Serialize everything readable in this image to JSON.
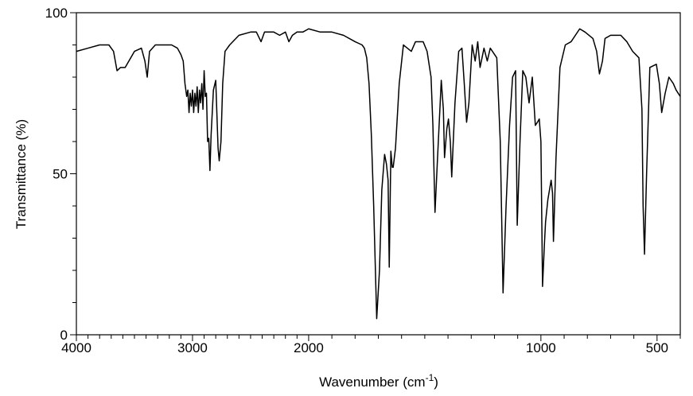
{
  "chart_data": {
    "type": "line",
    "xlabel": {
      "text": "Wavenumber (cm",
      "sup": "-1",
      "end": ")"
    },
    "ylabel": "Transmittance (%)",
    "xlim": [
      4000,
      400
    ],
    "x_scale_break": 2000,
    "x_scale_ratio_below_break": 2,
    "ylim": [
      0,
      100
    ],
    "xticks": [
      4000,
      3000,
      2000,
      1000,
      500
    ],
    "xminorticks": [
      3900,
      3800,
      3700,
      3600,
      3500,
      3400,
      3300,
      3200,
      3100,
      2900,
      2800,
      2700,
      2600,
      2500,
      2400,
      2300,
      2200,
      2100,
      1900,
      1800,
      1700,
      1600,
      1500,
      1400,
      1300,
      1200,
      1100,
      900,
      800,
      700,
      600,
      400
    ],
    "yticks": [
      0,
      50,
      100
    ],
    "yminorticks": [
      10,
      20,
      30,
      40,
      60,
      70,
      80,
      90
    ],
    "series": [
      {
        "color": "#000000",
        "x": [
          4000,
          3900,
          3800,
          3720,
          3680,
          3650,
          3620,
          3580,
          3500,
          3440,
          3410,
          3390,
          3370,
          3320,
          3250,
          3180,
          3130,
          3100,
          3080,
          3065,
          3050,
          3040,
          3030,
          3020,
          3010,
          3000,
          2990,
          2980,
          2970,
          2960,
          2950,
          2940,
          2930,
          2920,
          2910,
          2900,
          2890,
          2880,
          2870,
          2860,
          2850,
          2840,
          2820,
          2800,
          2780,
          2770,
          2755,
          2740,
          2720,
          2700,
          2680,
          2600,
          2500,
          2450,
          2410,
          2380,
          2300,
          2250,
          2200,
          2170,
          2140,
          2100,
          2050,
          2000,
          1950,
          1900,
          1850,
          1800,
          1770,
          1760,
          1750,
          1740,
          1730,
          1720,
          1707,
          1695,
          1685,
          1673,
          1665,
          1658,
          1653,
          1646,
          1640,
          1636,
          1626,
          1610,
          1592,
          1575,
          1558,
          1540,
          1524,
          1507,
          1490,
          1473,
          1465,
          1456,
          1445,
          1429,
          1420,
          1415,
          1405,
          1398,
          1390,
          1384,
          1370,
          1354,
          1340,
          1330,
          1320,
          1310,
          1296,
          1283,
          1272,
          1262,
          1245,
          1231,
          1218,
          1190,
          1175,
          1163,
          1150,
          1135,
          1122,
          1109,
          1102,
          1090,
          1078,
          1065,
          1051,
          1044,
          1037,
          1024,
          1015,
          1007,
          1000,
          993,
          985,
          980,
          970,
          956,
          950,
          946,
          935,
          918,
          895,
          870,
          833,
          810,
          776,
          760,
          748,
          735,
          724,
          700,
          656,
          630,
          605,
          578,
          565,
          560,
          554,
          545,
          531,
          503,
          490,
          480,
          465,
          449,
          430,
          418,
          400
        ],
        "values": [
          88,
          89,
          90,
          90,
          88,
          82,
          83,
          83,
          88,
          89,
          85,
          80,
          88,
          90,
          90,
          90,
          89,
          87,
          85,
          78,
          74,
          76,
          69,
          75,
          71,
          76,
          69,
          75,
          71,
          77,
          69,
          76,
          72,
          78,
          70,
          82,
          74,
          75,
          60,
          61,
          51,
          62,
          76,
          79,
          58,
          54,
          60,
          78,
          88,
          89,
          90,
          93,
          94,
          94,
          91,
          94,
          94,
          93,
          94,
          91,
          93,
          94,
          94,
          95,
          94,
          94,
          93,
          91,
          90,
          89,
          86,
          78,
          62,
          40,
          5,
          20,
          45,
          56,
          53,
          48,
          21,
          57,
          52,
          52,
          58,
          78,
          90,
          89,
          88,
          91,
          91,
          91,
          88,
          80,
          65,
          38,
          55,
          79,
          70,
          55,
          64,
          67,
          60,
          49,
          72,
          88,
          89,
          78,
          66,
          72,
          90,
          85,
          91,
          83,
          89,
          85,
          89,
          86,
          60,
          13,
          40,
          65,
          80,
          82,
          34,
          60,
          82,
          80,
          72,
          76,
          80,
          65,
          66,
          67,
          60,
          15,
          28,
          35,
          42,
          48,
          44,
          29,
          55,
          83,
          90,
          91,
          95,
          94,
          92,
          88,
          81,
          85,
          92,
          93,
          93,
          91,
          88,
          86,
          70,
          40,
          25,
          50,
          83,
          84,
          78,
          69,
          75,
          80,
          78,
          76,
          74
        ]
      }
    ]
  }
}
